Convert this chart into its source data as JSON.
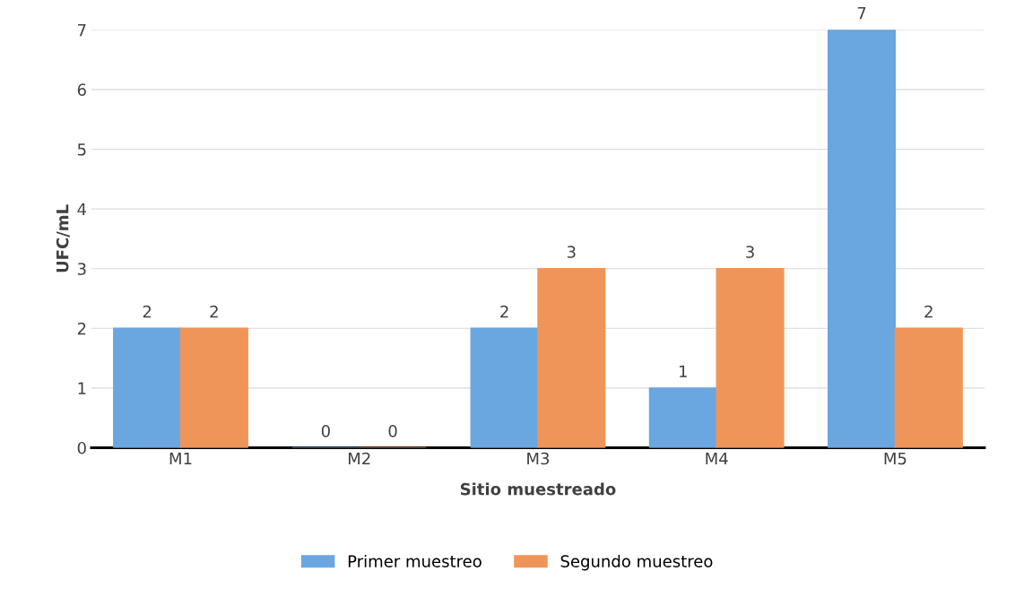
{
  "chart_data": {
    "type": "bar",
    "xlabel": "Sitio muestreado",
    "ylabel": "UFC/mL",
    "categories": [
      "M1",
      "M2",
      "M3",
      "M4",
      "M5"
    ],
    "series": [
      {
        "name": "Primer muestreo",
        "color": "#6aa6e0",
        "values": [
          2,
          0,
          2,
          1,
          7
        ]
      },
      {
        "name": "Segundo muestreo",
        "color": "#f0955a",
        "values": [
          2,
          0,
          3,
          3,
          2
        ]
      }
    ],
    "ylim": [
      0,
      7
    ],
    "yticks": [
      0,
      1,
      2,
      3,
      4,
      5,
      6,
      7
    ],
    "grid": "y",
    "legend": "bottom",
    "data_labels": true
  }
}
